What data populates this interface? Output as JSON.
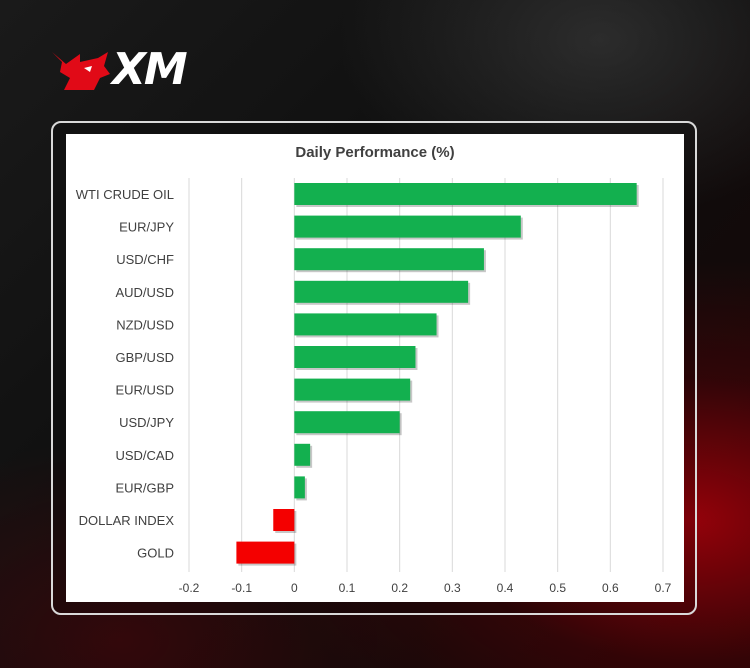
{
  "brand": {
    "logo_text": "XM",
    "logo_icon": "bull-head-icon",
    "colors": {
      "logo_red": "#e10a17",
      "text": "#ffffff"
    }
  },
  "chart_data": {
    "type": "bar",
    "orientation": "horizontal",
    "title": "Daily Performance (%)",
    "xlabel": "",
    "ylabel": "",
    "categories": [
      "WTI CRUDE OIL",
      "EUR/JPY",
      "USD/CHF",
      "AUD/USD",
      "NZD/USD",
      "GBP/USD",
      "EUR/USD",
      "USD/JPY",
      "USD/CAD",
      "EUR/GBP",
      "DOLLAR INDEX",
      "GOLD"
    ],
    "values": [
      0.65,
      0.43,
      0.36,
      0.33,
      0.27,
      0.23,
      0.22,
      0.2,
      0.03,
      0.02,
      -0.04,
      -0.11
    ],
    "xlim": [
      -0.2,
      0.7
    ],
    "xticks": [
      "-0.2",
      "-0.1",
      "0",
      "0.1",
      "0.2",
      "0.3",
      "0.4",
      "0.5",
      "0.6",
      "0.7"
    ],
    "grid": "vertical",
    "legend": "none",
    "colors": {
      "positive": "#13b04f",
      "negative": "#f40000",
      "grid": "#d9d9d9",
      "label": "#404040"
    }
  }
}
